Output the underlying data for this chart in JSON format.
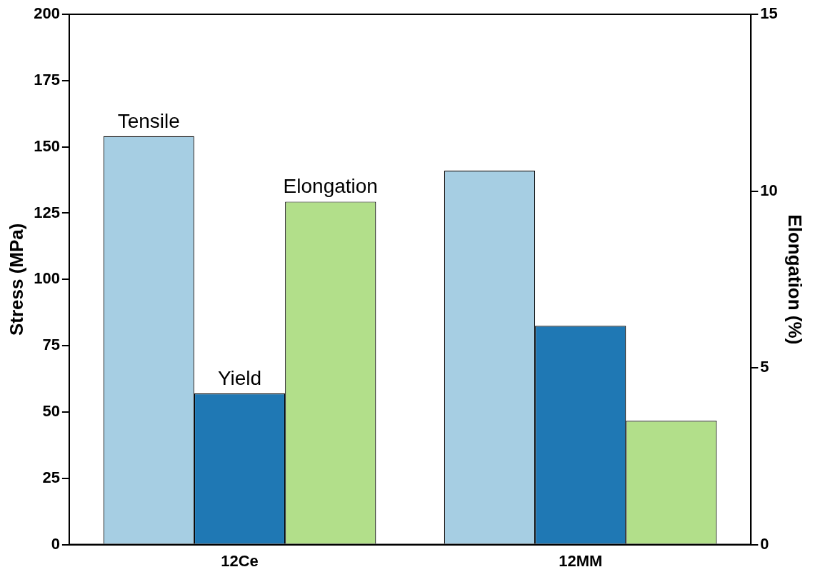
{
  "chart_data": {
    "type": "bar",
    "ylabel": "Stress (MPa)",
    "y2label": "Elongation (%)",
    "categories": [
      "12Ce",
      "12MM"
    ],
    "series": [
      {
        "name": "Tensile",
        "color": "#a6cee3",
        "values": [
          154,
          141
        ]
      },
      {
        "name": "Yield",
        "color": "#1f78b4",
        "values": [
          57,
          82.5
        ]
      },
      {
        "name": "Elongation",
        "color": "#b2df8a",
        "values": [
          9.7,
          3.5
        ],
        "axis": "y2"
      }
    ],
    "ylim": [
      0,
      200
    ],
    "yticks": [
      0,
      25,
      50,
      75,
      100,
      125,
      150,
      175,
      200
    ],
    "y2lim": [
      0,
      15
    ],
    "y2ticks": [
      0,
      5,
      10,
      15
    ],
    "grid": false,
    "legend": false
  }
}
